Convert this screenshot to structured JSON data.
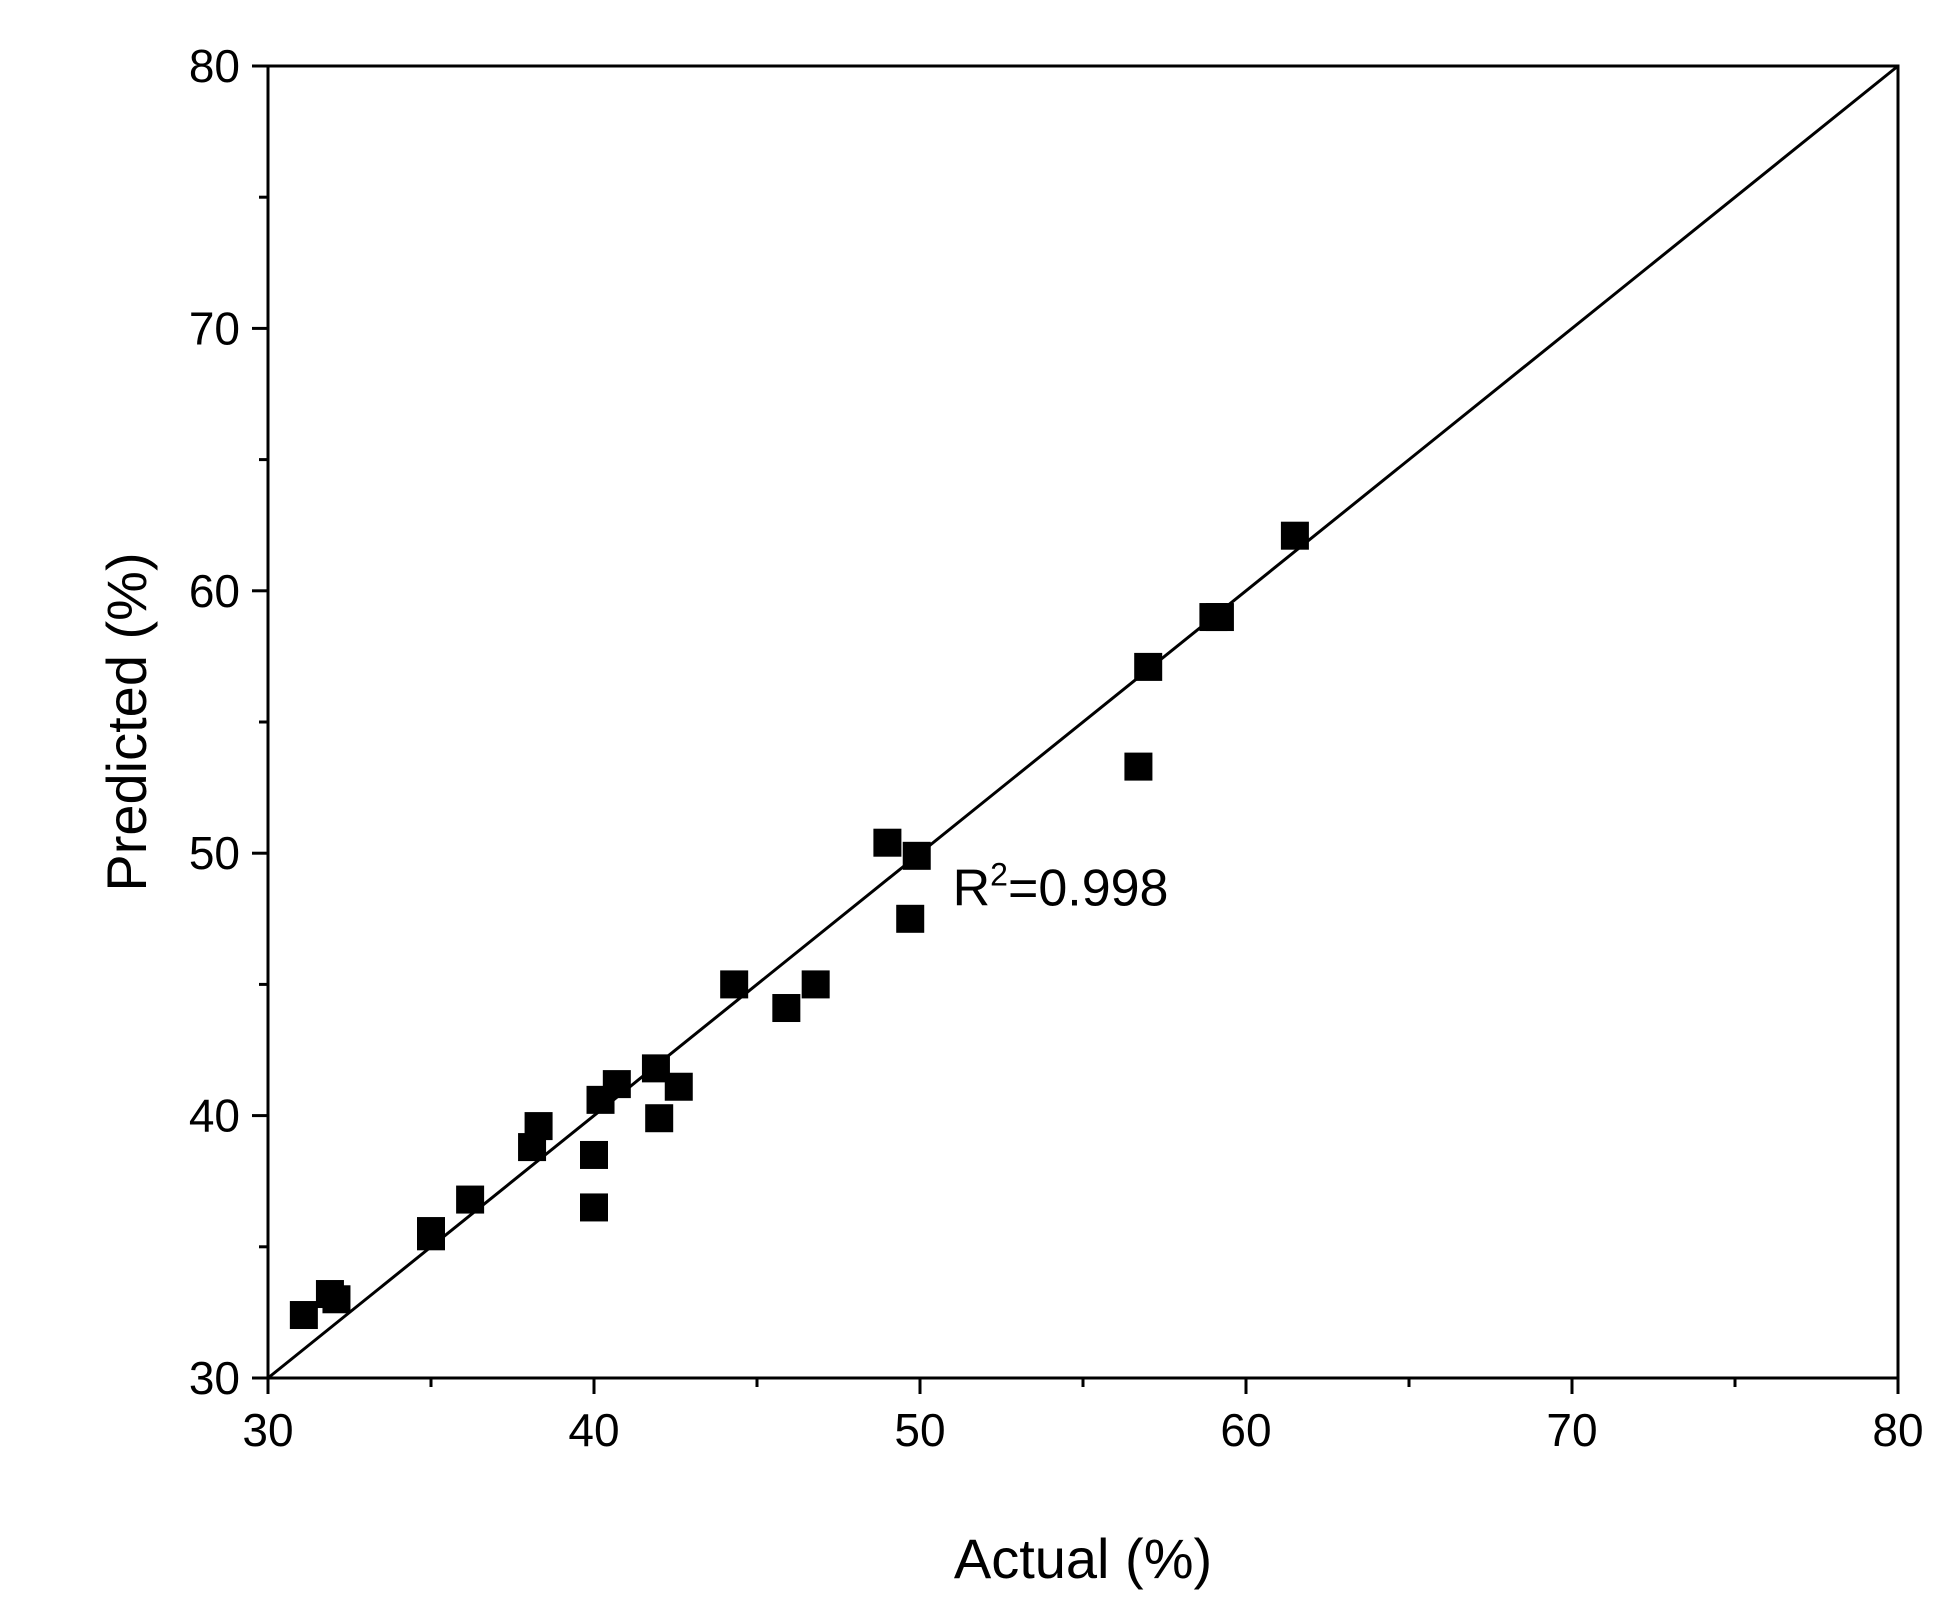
{
  "chart_data": {
    "type": "scatter",
    "xlabel": "Actual (%)",
    "ylabel": "Predicted (%)",
    "xlim": [
      30,
      80
    ],
    "ylim": [
      30,
      80
    ],
    "x_ticks": [
      30,
      40,
      50,
      60,
      70,
      80
    ],
    "y_ticks": [
      30,
      40,
      50,
      60,
      70,
      80
    ],
    "x_tick_labels": [
      "30",
      "40",
      "50",
      "60",
      "70",
      "80"
    ],
    "y_tick_labels": [
      "30",
      "40",
      "50",
      "60",
      "70",
      "80"
    ],
    "minor_tick_step": 5,
    "grid": false,
    "reference_line": {
      "from": [
        30,
        30
      ],
      "to": [
        80,
        80
      ],
      "color": "#000000"
    },
    "annotation": {
      "base": "R",
      "superscript": "2",
      "rest": "=0.998",
      "x": 51,
      "y": 48
    },
    "marker": {
      "shape": "square",
      "color": "#000000"
    },
    "points": [
      {
        "x": 31.1,
        "y": 32.4
      },
      {
        "x": 31.9,
        "y": 33.2
      },
      {
        "x": 32.1,
        "y": 33.0
      },
      {
        "x": 35.0,
        "y": 35.6
      },
      {
        "x": 35.0,
        "y": 35.4
      },
      {
        "x": 36.2,
        "y": 36.8
      },
      {
        "x": 38.1,
        "y": 38.8
      },
      {
        "x": 38.3,
        "y": 39.6
      },
      {
        "x": 40.0,
        "y": 36.5
      },
      {
        "x": 40.0,
        "y": 38.5
      },
      {
        "x": 40.2,
        "y": 40.6
      },
      {
        "x": 40.7,
        "y": 41.2
      },
      {
        "x": 41.9,
        "y": 41.8
      },
      {
        "x": 42.0,
        "y": 39.9
      },
      {
        "x": 42.6,
        "y": 41.1
      },
      {
        "x": 44.3,
        "y": 45.0
      },
      {
        "x": 45.9,
        "y": 44.1
      },
      {
        "x": 46.8,
        "y": 45.0
      },
      {
        "x": 49.0,
        "y": 50.4
      },
      {
        "x": 49.7,
        "y": 47.5
      },
      {
        "x": 49.9,
        "y": 49.9
      },
      {
        "x": 56.7,
        "y": 53.3
      },
      {
        "x": 57.0,
        "y": 57.1
      },
      {
        "x": 59.0,
        "y": 59.0
      },
      {
        "x": 59.2,
        "y": 59.0
      },
      {
        "x": 61.5,
        "y": 62.1
      }
    ]
  }
}
